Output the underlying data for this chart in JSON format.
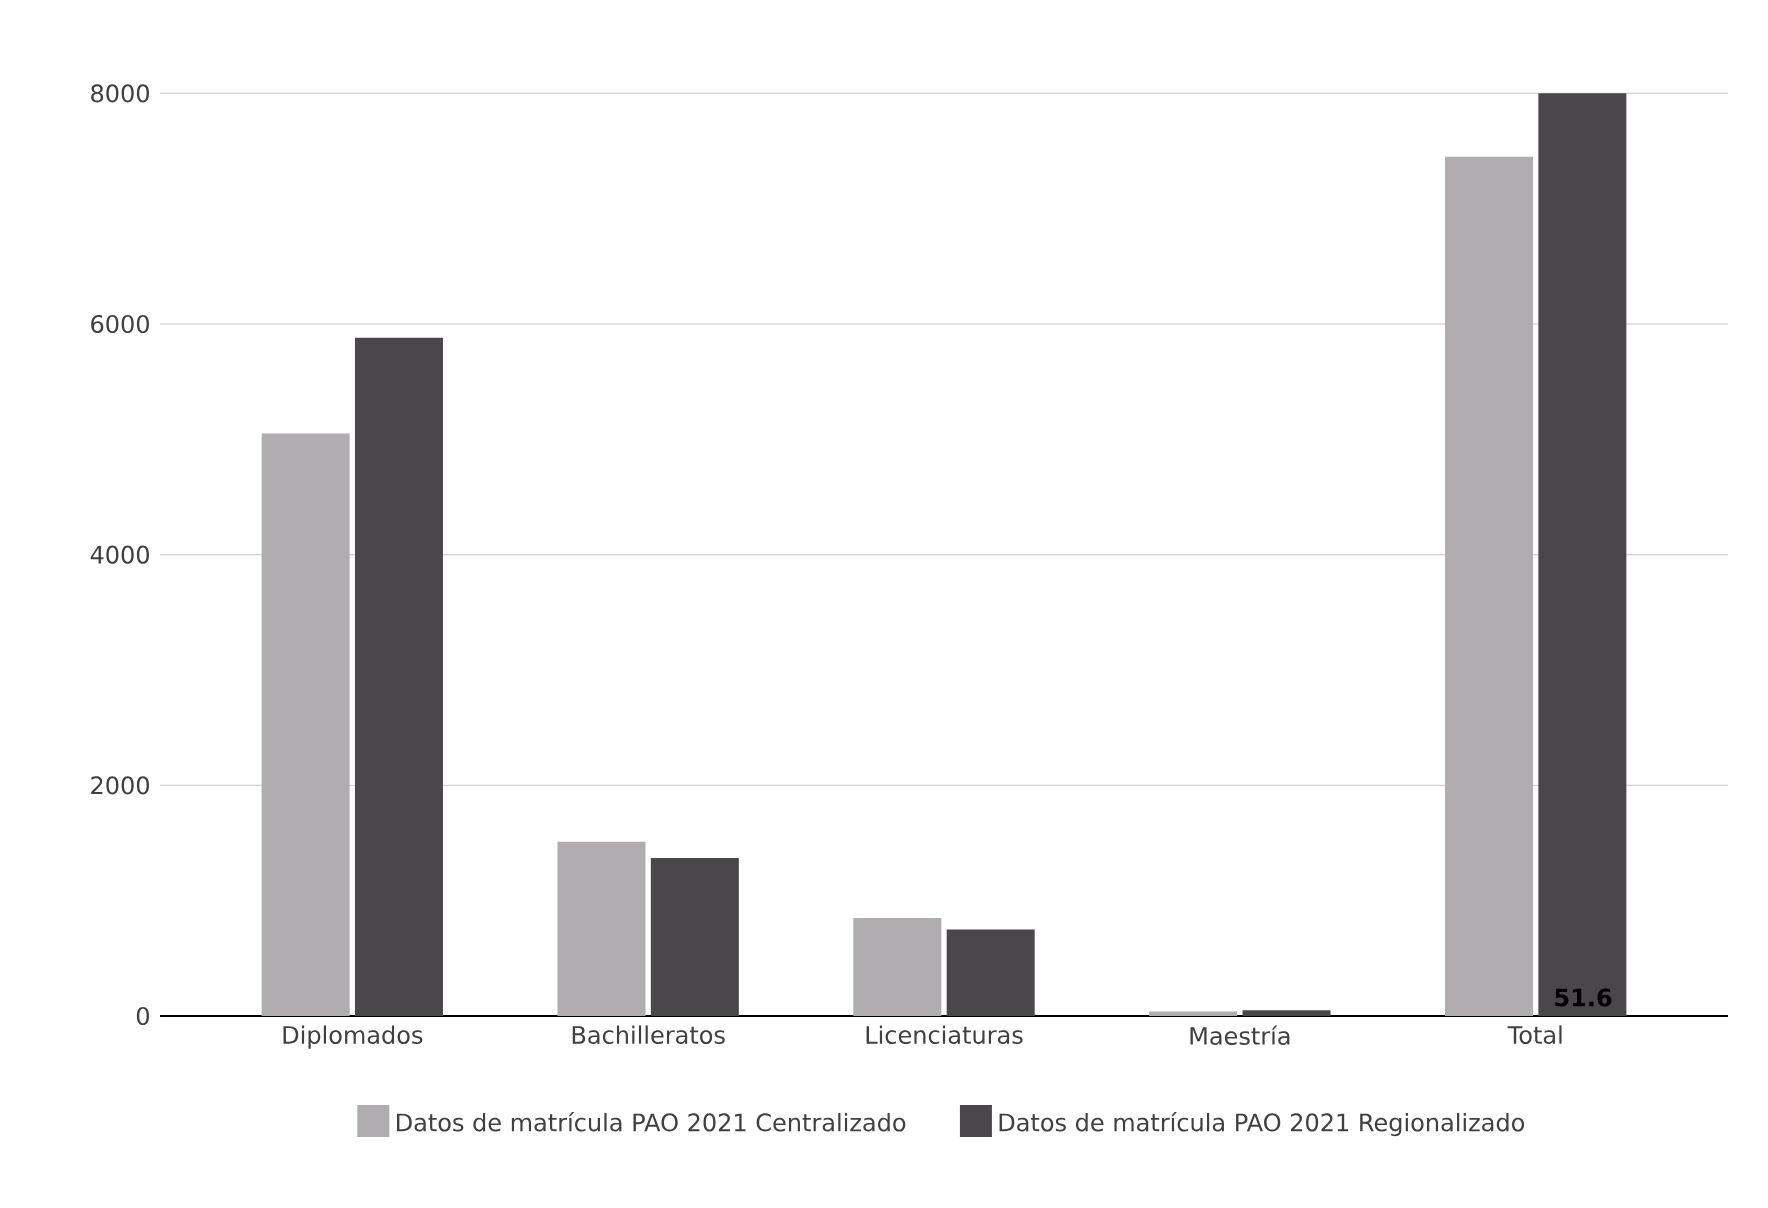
{
  "chart_data": {
    "type": "bar",
    "categories": [
      "Diplomados",
      "Bachilleratos",
      "Licenciaturas",
      "Maestría",
      "Total"
    ],
    "series": [
      {
        "name": "Datos de matrícula PAO 2021 Centralizado",
        "color": "#b0acb0",
        "values": [
          5050,
          1510,
          850,
          40,
          7450
        ]
      },
      {
        "name": "Datos de matrícula PAO 2021 Regionalizado",
        "color": "#4a474a",
        "values": [
          5880,
          1370,
          750,
          50,
          8000
        ]
      }
    ],
    "ylim": [
      0,
      8000
    ],
    "yticks": [
      0,
      2000,
      4000,
      6000,
      8000
    ],
    "grid": "y",
    "legend": "bottom",
    "annotations": [
      "51.6"
    ]
  }
}
